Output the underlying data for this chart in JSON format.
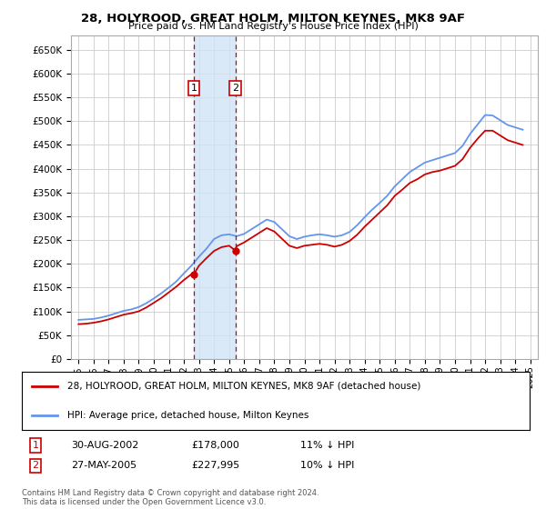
{
  "title": "28, HOLYROOD, GREAT HOLM, MILTON KEYNES, MK8 9AF",
  "subtitle": "Price paid vs. HM Land Registry's House Price Index (HPI)",
  "legend_line1": "28, HOLYROOD, GREAT HOLM, MILTON KEYNES, MK8 9AF (detached house)",
  "legend_line2": "HPI: Average price, detached house, Milton Keynes",
  "transaction1_label": "1",
  "transaction1_date": "30-AUG-2002",
  "transaction1_price": "£178,000",
  "transaction1_hpi": "11% ↓ HPI",
  "transaction2_label": "2",
  "transaction2_date": "27-MAY-2005",
  "transaction2_price": "£227,995",
  "transaction2_hpi": "10% ↓ HPI",
  "footnote": "Contains HM Land Registry data © Crown copyright and database right 2024.\nThis data is licensed under the Open Government Licence v3.0.",
  "ylim": [
    0,
    680000
  ],
  "yticks": [
    0,
    50000,
    100000,
    150000,
    200000,
    250000,
    300000,
    350000,
    400000,
    450000,
    500000,
    550000,
    600000,
    650000
  ],
  "hpi_color": "#6495ED",
  "price_color": "#CC0000",
  "shading_color": "#d0e4f7",
  "marker1_x": 2002.66,
  "marker1_y": 178000,
  "marker2_x": 2005.41,
  "marker2_y": 227995,
  "vline1_x": 2002.66,
  "vline2_x": 2005.41,
  "x_min": 1994.5,
  "x_max": 2025.5
}
